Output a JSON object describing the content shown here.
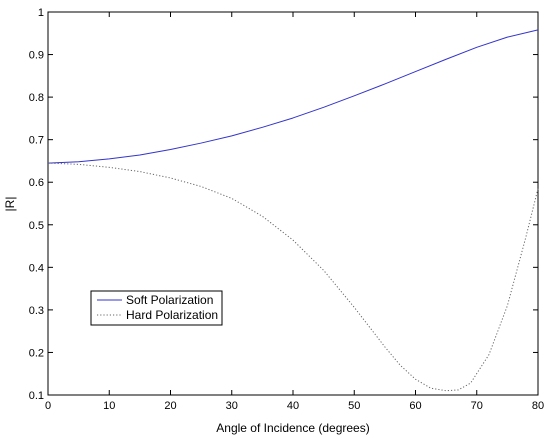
{
  "chart_data": {
    "type": "line",
    "xlabel": "Angle of Incidence (degrees)",
    "ylabel": "|R|",
    "xlim": [
      0,
      80
    ],
    "ylim": [
      0.1,
      1
    ],
    "x_ticks": [
      "0",
      "10",
      "20",
      "30",
      "40",
      "50",
      "60",
      "70",
      "80"
    ],
    "y_ticks": [
      "0.1",
      "0.2",
      "0.3",
      "0.4",
      "0.5",
      "0.6",
      "0.7",
      "0.8",
      "0.9",
      "1"
    ],
    "grid": false,
    "legend_position": "lower-left",
    "series": [
      {
        "name": "Soft Polarization",
        "color": "#3333cc",
        "style": "solid",
        "x": [
          0,
          5,
          10,
          15,
          20,
          25,
          30,
          35,
          40,
          45,
          50,
          55,
          60,
          65,
          70,
          75,
          80
        ],
        "values": [
          0.645,
          0.648,
          0.655,
          0.664,
          0.677,
          0.692,
          0.709,
          0.729,
          0.751,
          0.776,
          0.803,
          0.831,
          0.86,
          0.889,
          0.917,
          0.941,
          0.958
        ]
      },
      {
        "name": "Hard Polarization",
        "color": "#666666",
        "style": "dotted",
        "x": [
          0,
          5,
          10,
          15,
          20,
          25,
          30,
          35,
          40,
          45,
          50,
          55,
          57.5,
          60,
          62.5,
          65,
          67,
          69,
          72,
          75,
          78,
          80
        ],
        "values": [
          0.645,
          0.642,
          0.635,
          0.625,
          0.61,
          0.59,
          0.562,
          0.52,
          0.464,
          0.393,
          0.306,
          0.213,
          0.17,
          0.137,
          0.116,
          0.11,
          0.112,
          0.128,
          0.195,
          0.31,
          0.47,
          0.585
        ]
      }
    ]
  }
}
